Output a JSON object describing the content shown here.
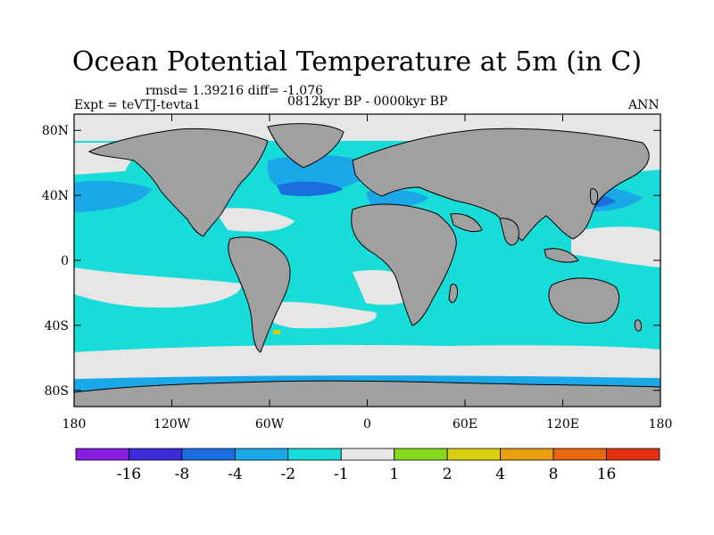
{
  "title": "Ocean Potential Temperature at 5m (in C)",
  "stats": "rmsd= 1.39216 diff= -1.076",
  "experiment": "Expt = teVTJ-tevta1",
  "period": "0812kyr BP - 0000kyr BP",
  "season": "ANN",
  "axes": {
    "lat_labels": [
      "80N",
      "40N",
      "0",
      "40S",
      "80S"
    ],
    "lat_values": [
      80,
      40,
      0,
      -40,
      -80
    ],
    "lon_labels": [
      "180",
      "120W",
      "60W",
      "0",
      "60E",
      "120E",
      "180"
    ],
    "lon_values": [
      -180,
      -120,
      -60,
      0,
      60,
      120,
      180
    ],
    "lat_range": [
      -90,
      90
    ],
    "lon_range": [
      -180,
      180
    ]
  },
  "colorbar": {
    "colors": [
      "#8a1ee0",
      "#3a2ad8",
      "#1a6ee0",
      "#1aa8e8",
      "#18dcd8",
      "#e6e6e6",
      "#88d81c",
      "#d8d010",
      "#e8a010",
      "#e86810",
      "#e03010"
    ],
    "labels": [
      "-16",
      "-8",
      "-4",
      "-2",
      "-1",
      "1",
      "2",
      "4",
      "8",
      "16"
    ]
  },
  "colors": {
    "land": "#a0a0a0",
    "coast": "#000000",
    "near_zero": "#e6e6e6",
    "cool": "#18dcd8",
    "cooler": "#1aa8e8",
    "coolest": "#1a6ee0",
    "warm": "#d8d010"
  }
}
